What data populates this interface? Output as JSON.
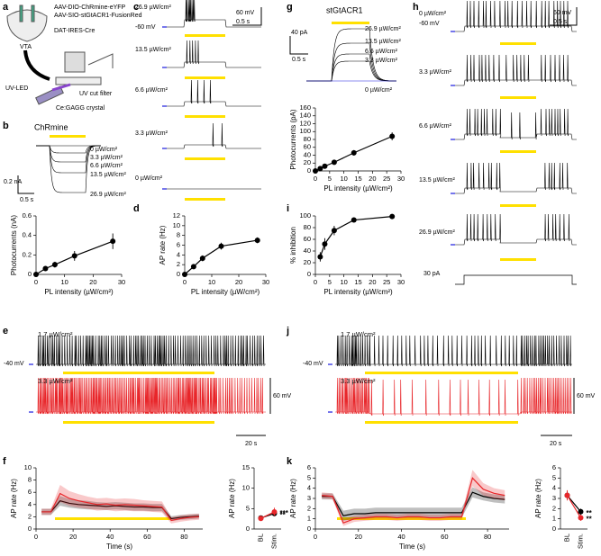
{
  "panel_labels": [
    "a",
    "b",
    "c",
    "d",
    "e",
    "f",
    "g",
    "h",
    "i",
    "j",
    "k"
  ],
  "schematic": {
    "virus1": "AAV-DIO-ChRmine-eYFP",
    "virus2": "AAV-SIO-stGtACR1-FusionRed",
    "mouse": "DAT-IRES-Cre",
    "region": "VTA",
    "led": "UV-LED",
    "filter": "UV cut filter",
    "crystal": "Ce:GAGG crystal"
  },
  "panel_b": {
    "title": "ChRmine",
    "intensities": [
      "0 µW/cm²",
      "3.3 µW/cm²",
      "6.6 µW/cm²",
      "13.5 µW/cm²",
      "26.9 µW/cm²"
    ],
    "scale_y": "0.2 nA",
    "scale_x": "0.5 s"
  },
  "panel_c": {
    "intensities": [
      "26.9 µW/cm²",
      "13.5 µW/cm²",
      "6.6 µW/cm²",
      "3.3 µW/cm²",
      "0 µW/cm²"
    ],
    "vm": "-60 mV",
    "scale_y": "60 mV",
    "scale_x": "0.5 s"
  },
  "panel_g": {
    "title": "stGtACR1",
    "intensities": [
      "26.9 µW/cm²",
      "13.5 µW/cm²",
      "6.6 µW/cm²",
      "3.3 µW/cm²",
      "0 µW/cm²"
    ],
    "scale_y": "40 pA",
    "scale_x": "0.5 s"
  },
  "panel_h": {
    "intensities": [
      "0 µW/cm²",
      "3.3 µW/cm²",
      "6.6 µW/cm²",
      "13.5 µW/cm²",
      "26.9 µW/cm²"
    ],
    "vm": "-60 mV",
    "current": "30 pA",
    "scale_y": "60 mV",
    "scale_x": "0.5 s"
  },
  "panel_e": {
    "intensities": [
      "1.7 µW/cm²",
      "3.3 µW/cm²"
    ],
    "vm": "-40 mV",
    "scale_y": "60 mV",
    "scale_x": "20 s"
  },
  "panel_j": {
    "intensities": [
      "1.7 µW/cm²",
      "3.3 µW/cm²"
    ],
    "vm": "-40 mV",
    "scale_y": "60 mV",
    "scale_x": "20 s"
  },
  "chart_data": [
    {
      "type": "line",
      "xlabel": "PL intensity (µW/cm²)",
      "ylabel": "Photocurrents (nA)",
      "x": [
        0,
        3.3,
        6.6,
        13.5,
        26.9
      ],
      "error_style": "bars",
      "markers": true,
      "series": [
        {
          "color": "#000000",
          "values": [
            0,
            0.06,
            0.1,
            0.19,
            0.34
          ],
          "errors": [
            0,
            0.02,
            0.03,
            0.05,
            0.08
          ]
        }
      ],
      "xlim": [
        0,
        30
      ],
      "xticks": [
        0,
        10,
        20,
        30
      ],
      "ylim": [
        0,
        0.6
      ],
      "yticks": [
        0,
        0.2,
        0.4,
        0.6
      ]
    },
    {
      "type": "line",
      "xlabel": "PL intensity (µW/cm²)",
      "ylabel": "AP rate (Hz)",
      "x": [
        0,
        3.3,
        6.6,
        13.5,
        26.9
      ],
      "error_style": "bars",
      "markers": true,
      "series": [
        {
          "color": "#000000",
          "values": [
            0,
            1.6,
            3.3,
            5.8,
            7.0
          ],
          "errors": [
            0,
            0.4,
            0.6,
            0.7,
            0.6
          ]
        }
      ],
      "xlim": [
        0,
        30
      ],
      "xticks": [
        0,
        10,
        20,
        30
      ],
      "ylim": [
        0,
        12
      ],
      "yticks": [
        0,
        2,
        4,
        6,
        8,
        10,
        12
      ]
    },
    {
      "type": "line",
      "xlabel": "PL intensity (µW/cm²)",
      "ylabel": "Photocurrents (pA)",
      "x": [
        0,
        1.7,
        3.3,
        6.6,
        13.5,
        26.9
      ],
      "error_style": "bars",
      "markers": true,
      "series": [
        {
          "color": "#000000",
          "values": [
            0,
            6,
            12,
            22,
            46,
            88
          ],
          "errors": [
            0,
            2,
            3,
            4,
            7,
            10
          ]
        }
      ],
      "xlim": [
        0,
        30
      ],
      "xticks": [
        0,
        5,
        10,
        15,
        20,
        25,
        30
      ],
      "ylim": [
        0,
        160
      ],
      "yticks": [
        0,
        20,
        40,
        60,
        80,
        100,
        120,
        140,
        160
      ]
    },
    {
      "type": "line",
      "xlabel": "PL intensity (µW/cm²)",
      "ylabel": "% inhibition",
      "x": [
        1.7,
        3.3,
        6.6,
        13.5,
        26.9
      ],
      "error_style": "bars",
      "markers": true,
      "series": [
        {
          "color": "#000000",
          "values": [
            30,
            52,
            75,
            93,
            99
          ],
          "errors": [
            8,
            10,
            8,
            3,
            1
          ]
        }
      ],
      "xlim": [
        0,
        30
      ],
      "xticks": [
        0,
        5,
        10,
        15,
        20,
        25,
        30
      ],
      "ylim": [
        0,
        100
      ],
      "yticks": [
        0,
        20,
        40,
        60,
        80,
        100
      ]
    },
    {
      "type": "line",
      "xlabel": "Time (s)",
      "ylabel": "AP rate (Hz)",
      "x": [
        3,
        8,
        13,
        18,
        23,
        28,
        33,
        38,
        43,
        48,
        53,
        58,
        63,
        68,
        73,
        78,
        83,
        88
      ],
      "error_style": "band",
      "markers": false,
      "series": [
        {
          "color": "#000000",
          "values": [
            2.8,
            2.8,
            4.6,
            4.2,
            4.0,
            3.9,
            3.8,
            3.7,
            3.8,
            3.7,
            3.6,
            3.6,
            3.5,
            3.5,
            1.7,
            1.9,
            2.0,
            2.1
          ],
          "errors": [
            0.5,
            0.5,
            0.8,
            0.7,
            0.7,
            0.7,
            0.6,
            0.6,
            0.6,
            0.6,
            0.6,
            0.6,
            0.6,
            0.6,
            0.4,
            0.4,
            0.4,
            0.4
          ]
        },
        {
          "color": "#e8262a",
          "values": [
            2.8,
            2.8,
            5.8,
            5.0,
            4.6,
            4.3,
            4.0,
            4.1,
            3.9,
            4.0,
            3.9,
            3.8,
            3.7,
            3.6,
            1.4,
            1.7,
            1.9,
            2.0
          ],
          "errors": [
            0.5,
            0.5,
            1.4,
            1.2,
            1.1,
            1.0,
            1.0,
            1.0,
            1.0,
            1.0,
            1.0,
            0.9,
            0.9,
            0.9,
            0.5,
            0.5,
            0.5,
            0.5
          ]
        }
      ],
      "xlim": [
        0,
        90
      ],
      "xticks": [
        0,
        20,
        40,
        60,
        80
      ],
      "ylim": [
        0,
        10
      ],
      "yticks": [
        0,
        2,
        4,
        6,
        8,
        10
      ]
    },
    {
      "type": "line",
      "ylabel": "AP rate (Hz)",
      "categories": [
        "BL",
        "Stim."
      ],
      "error_style": "bars",
      "markers": true,
      "series": [
        {
          "color": "#000000",
          "values": [
            2.7,
            3.8
          ],
          "errors": [
            0.4,
            0.7
          ]
        },
        {
          "color": "#e8262a",
          "values": [
            2.6,
            4.2
          ],
          "errors": [
            0.5,
            1.0
          ]
        }
      ],
      "annotations": [
        {
          "text": "**",
          "color": "#e8262a"
        },
        {
          "text": "***",
          "color": "#000000"
        }
      ],
      "ylim": [
        0,
        15
      ],
      "yticks": [
        0,
        5,
        10,
        15
      ]
    },
    {
      "type": "line",
      "xlabel": "Time (s)",
      "ylabel": "AP rate (Hz)",
      "x": [
        3,
        8,
        13,
        18,
        23,
        28,
        33,
        38,
        43,
        48,
        53,
        58,
        63,
        68,
        73,
        78,
        83,
        88
      ],
      "error_style": "band",
      "markers": false,
      "series": [
        {
          "color": "#000000",
          "values": [
            3.2,
            3.2,
            1.3,
            1.5,
            1.5,
            1.6,
            1.6,
            1.6,
            1.6,
            1.6,
            1.6,
            1.6,
            1.6,
            1.6,
            3.6,
            3.2,
            3.0,
            2.9
          ],
          "errors": [
            0.3,
            0.3,
            0.5,
            0.5,
            0.5,
            0.5,
            0.5,
            0.5,
            0.5,
            0.5,
            0.5,
            0.5,
            0.5,
            0.5,
            0.5,
            0.4,
            0.4,
            0.4
          ]
        },
        {
          "color": "#e8262a",
          "values": [
            3.3,
            3.2,
            0.6,
            1.0,
            1.1,
            1.2,
            1.2,
            1.1,
            1.2,
            1.2,
            1.1,
            1.1,
            1.2,
            1.2,
            5.0,
            3.9,
            3.5,
            3.3
          ],
          "errors": [
            0.3,
            0.3,
            0.3,
            0.3,
            0.3,
            0.3,
            0.3,
            0.3,
            0.3,
            0.3,
            0.3,
            0.3,
            0.3,
            0.3,
            0.8,
            0.6,
            0.5,
            0.5
          ]
        }
      ],
      "xlim": [
        0,
        90
      ],
      "xticks": [
        0,
        20,
        40,
        60,
        80
      ],
      "ylim": [
        0,
        6
      ],
      "yticks": [
        0,
        1,
        2,
        3,
        4,
        5,
        6
      ]
    },
    {
      "type": "line",
      "ylabel": "AP rate (Hz)",
      "categories": [
        "BL",
        "Stim."
      ],
      "error_style": "bars",
      "markers": true,
      "series": [
        {
          "color": "#000000",
          "values": [
            3.3,
            1.7
          ],
          "errors": [
            0.4,
            0.3
          ]
        },
        {
          "color": "#e8262a",
          "values": [
            3.3,
            1.1
          ],
          "errors": [
            0.5,
            0.3
          ]
        }
      ],
      "annotations": [
        {
          "text": "**",
          "color": "#000000"
        },
        {
          "text": "**",
          "color": "#e8262a"
        }
      ],
      "ylim": [
        0,
        6
      ],
      "yticks": [
        0,
        1,
        2,
        3,
        4,
        5,
        6
      ]
    }
  ]
}
